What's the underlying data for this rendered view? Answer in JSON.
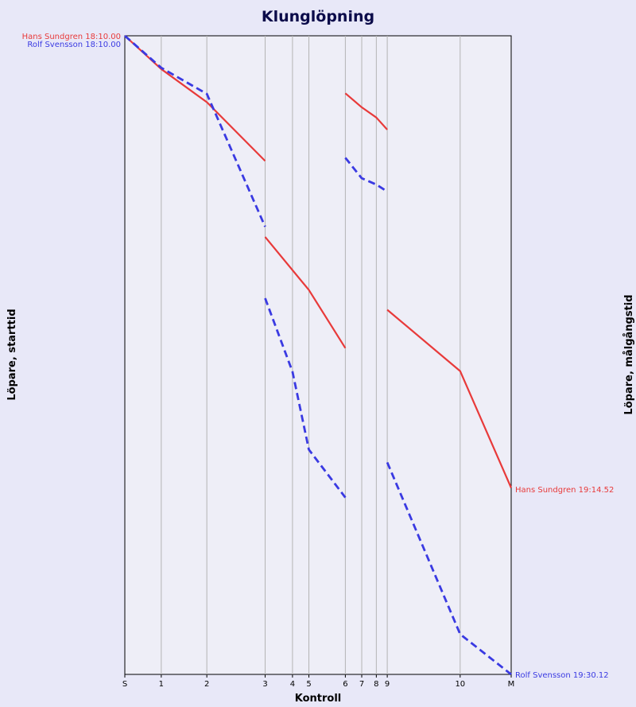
{
  "chart_data": {
    "type": "line",
    "title": "Klunglöpning",
    "xlabel": "Kontroll",
    "ylabel_left": "Löpare, starttid",
    "ylabel_right": "Löpare, målgångstid",
    "ticks": [
      "S",
      "1",
      "2",
      "3",
      "4",
      "5",
      "6",
      "7",
      "8",
      "9",
      "10",
      "M"
    ],
    "tick_pos": [
      0,
      1,
      2.25,
      3.85,
      4.6,
      5.05,
      6.05,
      6.5,
      6.9,
      7.2,
      9.2,
      10.6
    ],
    "y_range": [
      0,
      100
    ],
    "grid": "vertical",
    "colors": {
      "background": "#e8e8f8",
      "plot_bg": "#eeeef7",
      "grid": "#b4b4b4"
    },
    "series": [
      {
        "name": "Hans Sundgren",
        "color": "#e83a3a",
        "dashed": false,
        "start_label": "Hans Sundgren 18:10.00",
        "end_label": "Hans Sundgren 19:14.52",
        "segments": [
          [
            [
              0,
              0
            ],
            [
              1,
              5.2
            ],
            [
              2.25,
              10.4
            ],
            [
              3.85,
              19.6
            ]
          ],
          [
            [
              3.85,
              31.5
            ],
            [
              5.05,
              39.8
            ],
            [
              6.05,
              48.9
            ]
          ],
          [
            [
              6.05,
              9.0
            ],
            [
              6.5,
              11.2
            ],
            [
              6.9,
              12.8
            ],
            [
              7.2,
              14.7
            ]
          ],
          [
            [
              7.2,
              42.9
            ],
            [
              9.2,
              52.5
            ],
            [
              10.6,
              70.8
            ]
          ]
        ]
      },
      {
        "name": "Rolf Svensson",
        "color": "#3a3ae2",
        "dashed": true,
        "start_label": "Rolf Svensson 18:10.00",
        "end_label": "Rolf Svensson 19:30.12",
        "segments": [
          [
            [
              0,
              0
            ],
            [
              1,
              5.0
            ],
            [
              2.25,
              9.1
            ],
            [
              3.85,
              29.9
            ]
          ],
          [
            [
              6.05,
              19.1
            ],
            [
              6.5,
              22.3
            ],
            [
              6.9,
              23.3
            ],
            [
              7.2,
              24.4
            ]
          ],
          [
            [
              3.85,
              41.1
            ],
            [
              4.6,
              52.6
            ],
            [
              5.05,
              64.8
            ],
            [
              6.05,
              72.3
            ]
          ],
          [
            [
              7.2,
              66.8
            ],
            [
              9.2,
              93.7
            ],
            [
              10.6,
              100
            ]
          ]
        ]
      }
    ]
  }
}
